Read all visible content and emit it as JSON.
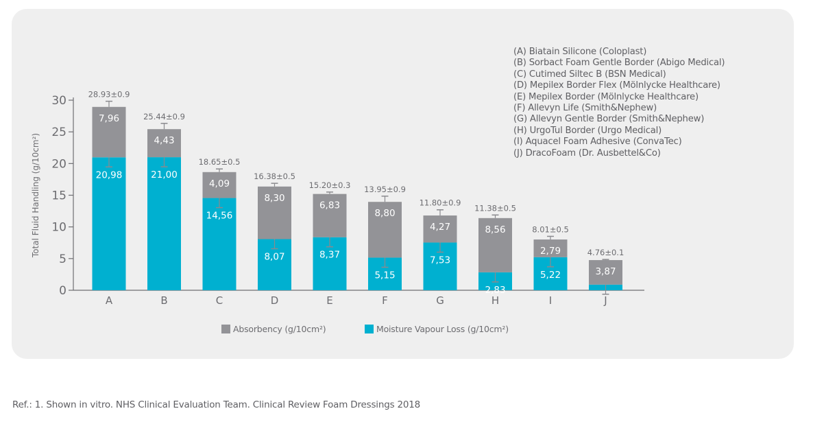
{
  "chart_data": {
    "type": "bar",
    "stacked": true,
    "title": "",
    "xlabel": "",
    "ylabel": "Total Fluid Handling  (g/10cm²)",
    "ylim": [
      0,
      30
    ],
    "yticks": [
      0,
      5,
      10,
      15,
      20,
      25,
      30
    ],
    "grid": false,
    "legend_placement": "bottom-center",
    "categories": [
      "A",
      "B",
      "C",
      "D",
      "E",
      "F",
      "G",
      "H",
      "I",
      "J"
    ],
    "series": [
      {
        "name": "Moisture Vapour Loss (g/10cm²)",
        "color": "#00b0d0",
        "values": [
          20.98,
          21.0,
          14.56,
          8.07,
          8.37,
          5.15,
          7.53,
          2.83,
          5.22,
          0.89
        ],
        "labels": [
          "20,98",
          "21,00",
          "14,56",
          "8,07",
          "8,37",
          "5,15",
          "7,53",
          "2,83",
          "5,22",
          ""
        ]
      },
      {
        "name": "Absorbency (g/10cm²)",
        "color": "#939397",
        "values": [
          7.96,
          4.43,
          4.09,
          8.3,
          6.83,
          8.8,
          4.27,
          8.56,
          2.79,
          3.87
        ],
        "labels": [
          "7,96",
          "4,43",
          "4,09",
          "8,30",
          "6,83",
          "8,80",
          "4,27",
          "8,56",
          "2,79",
          "3,87"
        ]
      }
    ],
    "totals": [
      28.93,
      25.44,
      18.65,
      16.38,
      15.2,
      13.95,
      11.8,
      11.38,
      8.01,
      4.76
    ],
    "total_errors": [
      0.9,
      0.9,
      0.5,
      0.5,
      0.3,
      0.9,
      0.9,
      0.5,
      0.5,
      0.1
    ],
    "total_labels": [
      "28.93±0.9",
      "25.44±0.9",
      "18.65±0.5",
      "16.38±0.5",
      "15.20±0.3",
      "13.95±0.9",
      "11.80±0.9",
      "11.38±0.5",
      "8.01±0.5",
      "4.76±0.1"
    ],
    "legend_order": [
      "Absorbency (g/10cm²)",
      "Moisture Vapour Loss (g/10cm²)"
    ]
  },
  "products": [
    "(A) Biatain Silicone (Coloplast)",
    "(B) Sorbact Foam Gentle Border (Abigo Medical)",
    "(C) Cutimed Siltec B (BSN Medical)",
    "(D) Mepilex Border Flex (Mölnlycke Healthcare)",
    "(E) Mepilex Border (Mölnlycke Healthcare)",
    "(F) Allevyn Life (Smith&Nephew)",
    "(G) Allevyn Gentle Border (Smith&Nephew)",
    "(H) UrgoTul Border (Urgo Medical)",
    "(I) Aquacel Foam Adhesive (ConvaTec)",
    "(J) DracoFoam  (Dr. Ausbettel&Co)"
  ],
  "legend": {
    "absorbency": "Absorbency (g/10cm²)",
    "mvl": "Moisture Vapour Loss (g/10cm²)"
  },
  "colors": {
    "absorbency": "#939397",
    "mvl": "#00b0d0",
    "axis": "#6e6e72",
    "text": "#6c6c70",
    "panel": "#efefef"
  },
  "reference": "Ref.: 1. Shown in vitro. NHS Clinical Evaluation Team. Clinical Review Foam Dressings 2018"
}
